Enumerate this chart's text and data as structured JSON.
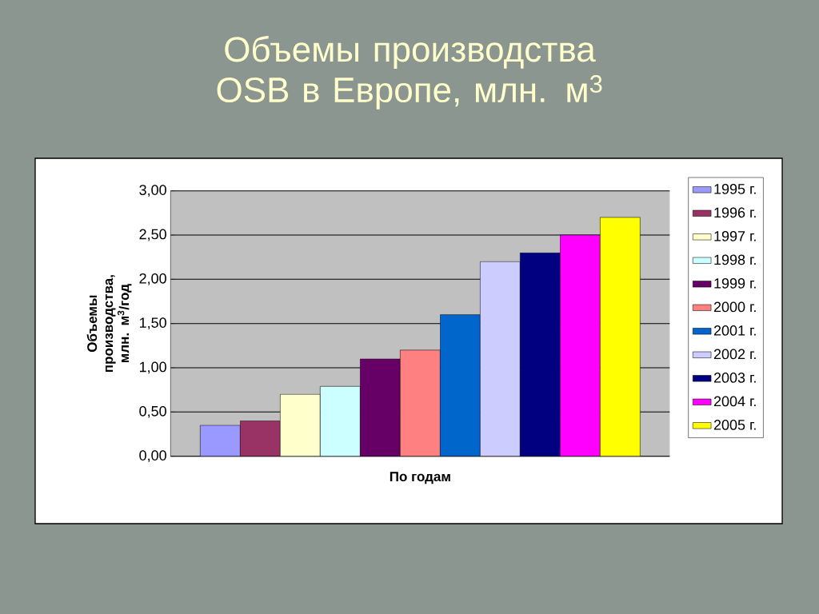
{
  "chart_data": {
    "type": "bar",
    "title": "Объемы производства OSB в Европе, млн. м$^{3}$",
    "xlabel": "По годам",
    "ylabel": "Объемы производства, млн. м$^{3}$/год",
    "categories": [
      null
    ],
    "series": [
      {
        "name": "1995 г.",
        "color": "#9999ff",
        "values": [
          0.35
        ]
      },
      {
        "name": "1996 г.",
        "color": "#993366",
        "values": [
          0.4
        ]
      },
      {
        "name": "1997 г.",
        "color": "#ffffcc",
        "values": [
          0.7
        ]
      },
      {
        "name": "1998 г.",
        "color": "#ccffff",
        "values": [
          0.79
        ]
      },
      {
        "name": "1999 г.",
        "color": "#660066",
        "values": [
          1.1
        ]
      },
      {
        "name": "2000 г.",
        "color": "#ff8080",
        "values": [
          1.2
        ]
      },
      {
        "name": "2001 г.",
        "color": "#0066cc",
        "values": [
          1.6
        ]
      },
      {
        "name": "2002 г.",
        "color": "#ccccff",
        "values": [
          2.2
        ]
      },
      {
        "name": "2003 г.",
        "color": "#000080",
        "values": [
          2.3
        ]
      },
      {
        "name": "2004 г.",
        "color": "#ff00ff",
        "values": [
          2.5
        ]
      },
      {
        "name": "2005 г.",
        "color": "#ffff00",
        "values": [
          2.7
        ]
      }
    ],
    "ylim": [
      0,
      3
    ],
    "yticks": [
      {
        "value": 0,
        "label": "0,00"
      },
      {
        "value": 0.5,
        "label": "0,50"
      },
      {
        "value": 1,
        "label": "1,00"
      },
      {
        "value": 1.5,
        "label": "1,50"
      },
      {
        "value": 2,
        "label": "2,00"
      },
      {
        "value": 2.5,
        "label": "2,50"
      },
      {
        "value": 3,
        "label": "3,00"
      }
    ],
    "grid": "y",
    "legend": "right"
  }
}
